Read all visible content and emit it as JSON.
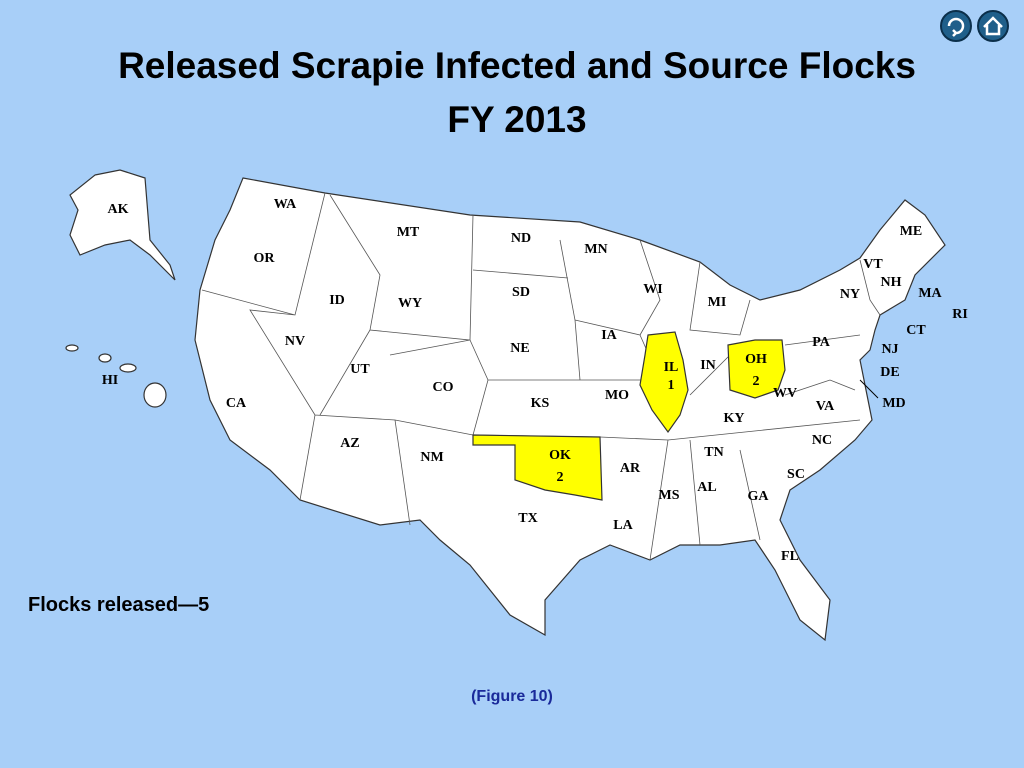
{
  "title": {
    "line1": "Released Scrapie Infected and Source Flocks",
    "line2": "FY 2013"
  },
  "map": {
    "state_fill": "#ffffff",
    "highlight_color": "#ffff00",
    "states": [
      "WA",
      "OR",
      "CA",
      "NV",
      "ID",
      "MT",
      "WY",
      "UT",
      "AZ",
      "CO",
      "NM",
      "ND",
      "SD",
      "NE",
      "KS",
      "TX",
      "MN",
      "IA",
      "MO",
      "AR",
      "LA",
      "WI",
      "MI",
      "IN",
      "KY",
      "TN",
      "MS",
      "AL",
      "GA",
      "FL",
      "SC",
      "NC",
      "VA",
      "WV",
      "PA",
      "NY",
      "VT",
      "NH",
      "ME",
      "MA",
      "RI",
      "CT",
      "NJ",
      "DE",
      "MD",
      "AK",
      "HI"
    ],
    "highlighted": [
      {
        "label": "IL",
        "count": 1
      },
      {
        "label": "OH",
        "count": 2
      },
      {
        "label": "OK",
        "count": 2
      }
    ]
  },
  "summary": "Flocks released—5",
  "caption": "(Figure 10)"
}
